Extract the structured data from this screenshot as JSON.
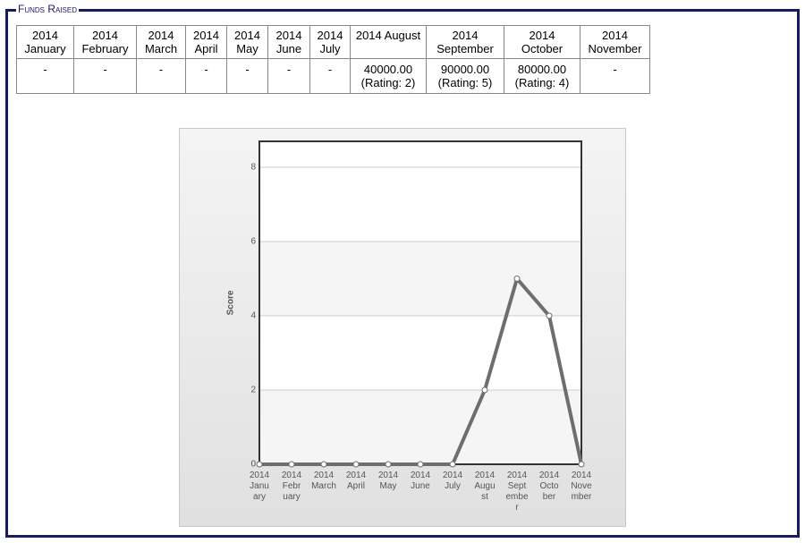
{
  "legend": "Funds Raised",
  "table": {
    "headers": [
      "2014 January",
      "2014 February",
      "2014 March",
      "2014 April",
      "2014 May",
      "2014 June",
      "2014 July",
      "2014 August",
      "2014 September",
      "2014 October",
      "2014 November"
    ],
    "rows": [
      [
        "-",
        "-",
        "-",
        "-",
        "-",
        "-",
        "-",
        "40000.00 (Rating: 2)",
        "90000.00 (Rating: 5)",
        "80000.00 (Rating: 4)",
        "-"
      ]
    ]
  },
  "chart_data": {
    "type": "line",
    "y_label": "Score",
    "categories": [
      "2014 January",
      "2014 February",
      "2014 March",
      "2014 April",
      "2014 May",
      "2014 June",
      "2014 July",
      "2014 August",
      "2014 September",
      "2014 October",
      "2014 November"
    ],
    "values": [
      0,
      0,
      0,
      0,
      0,
      0,
      0,
      2,
      5,
      4,
      0
    ],
    "color": "#6e6e6e",
    "ylim": [
      0,
      8.7
    ],
    "yticks": [
      0,
      2,
      4,
      6,
      8
    ],
    "grid": true
  }
}
